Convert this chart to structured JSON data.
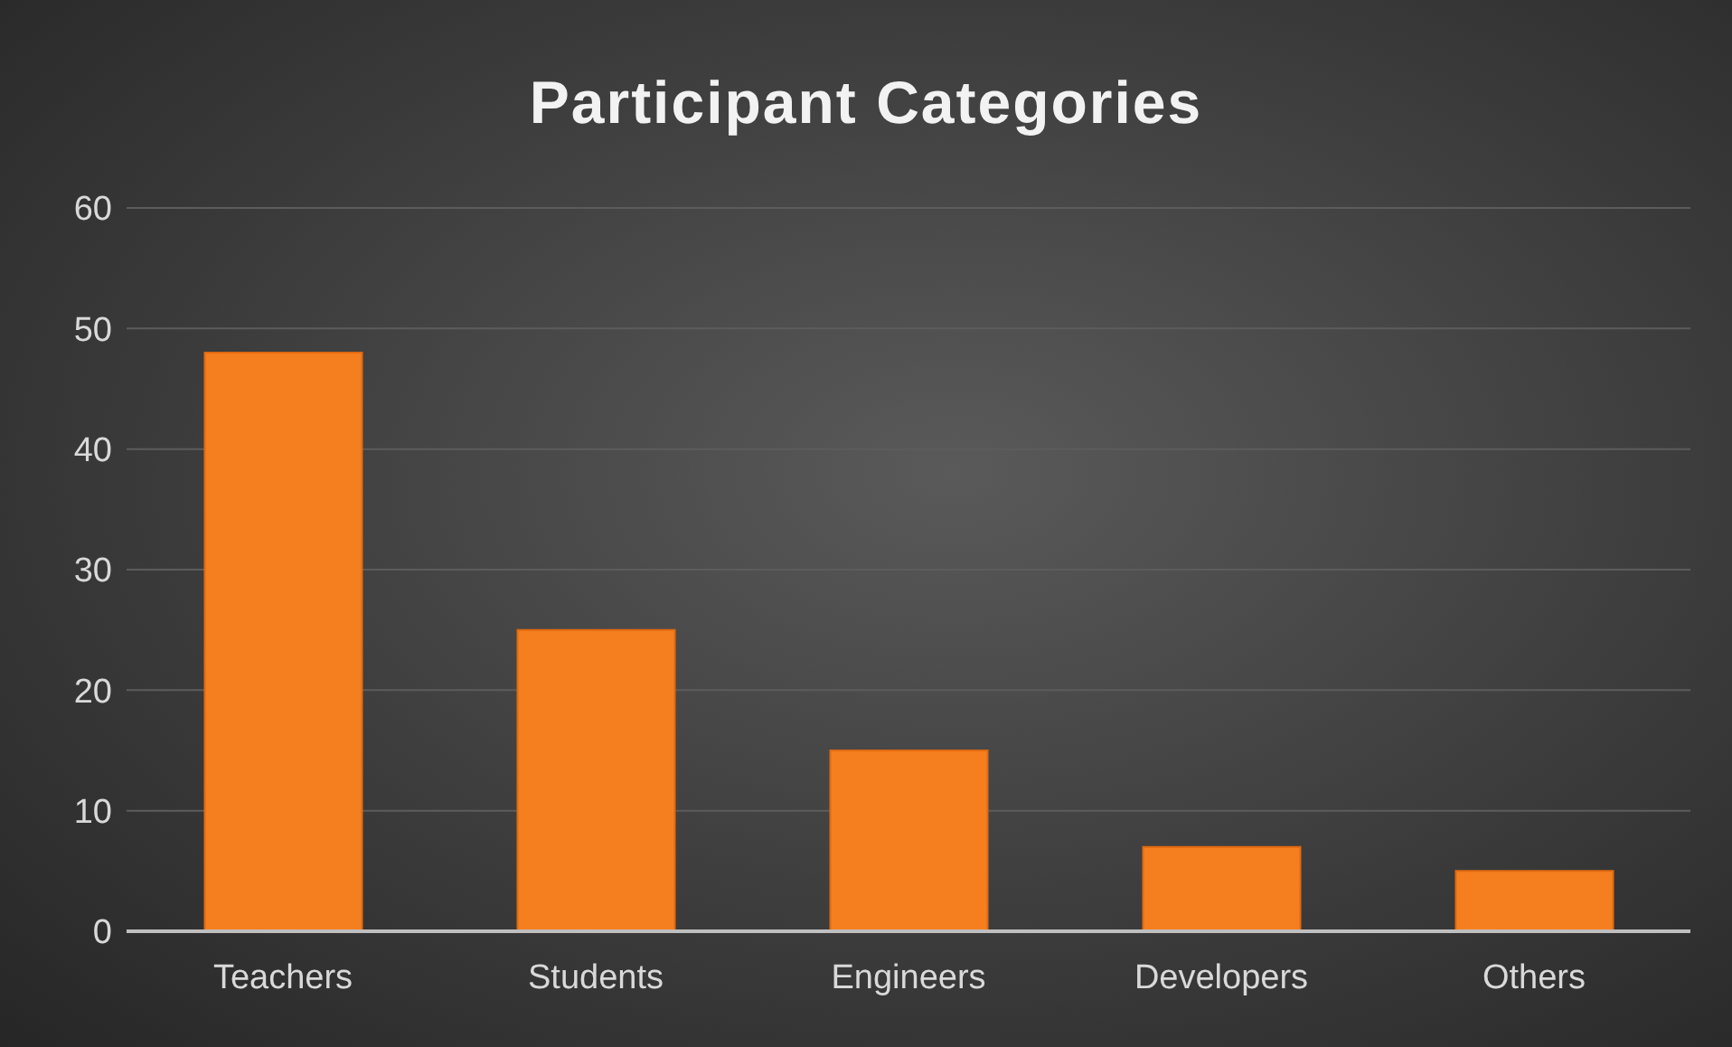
{
  "chart_data": {
    "type": "bar",
    "title": "Participant Categories",
    "categories": [
      "Teachers",
      "Students",
      "Engineers",
      "Developers",
      "Others"
    ],
    "values": [
      48,
      25,
      15,
      7,
      5
    ],
    "color": "#f57f1f",
    "ylim": [
      0,
      60
    ],
    "yticks": [
      0,
      10,
      20,
      30,
      40,
      50,
      60
    ],
    "grid": "y"
  }
}
